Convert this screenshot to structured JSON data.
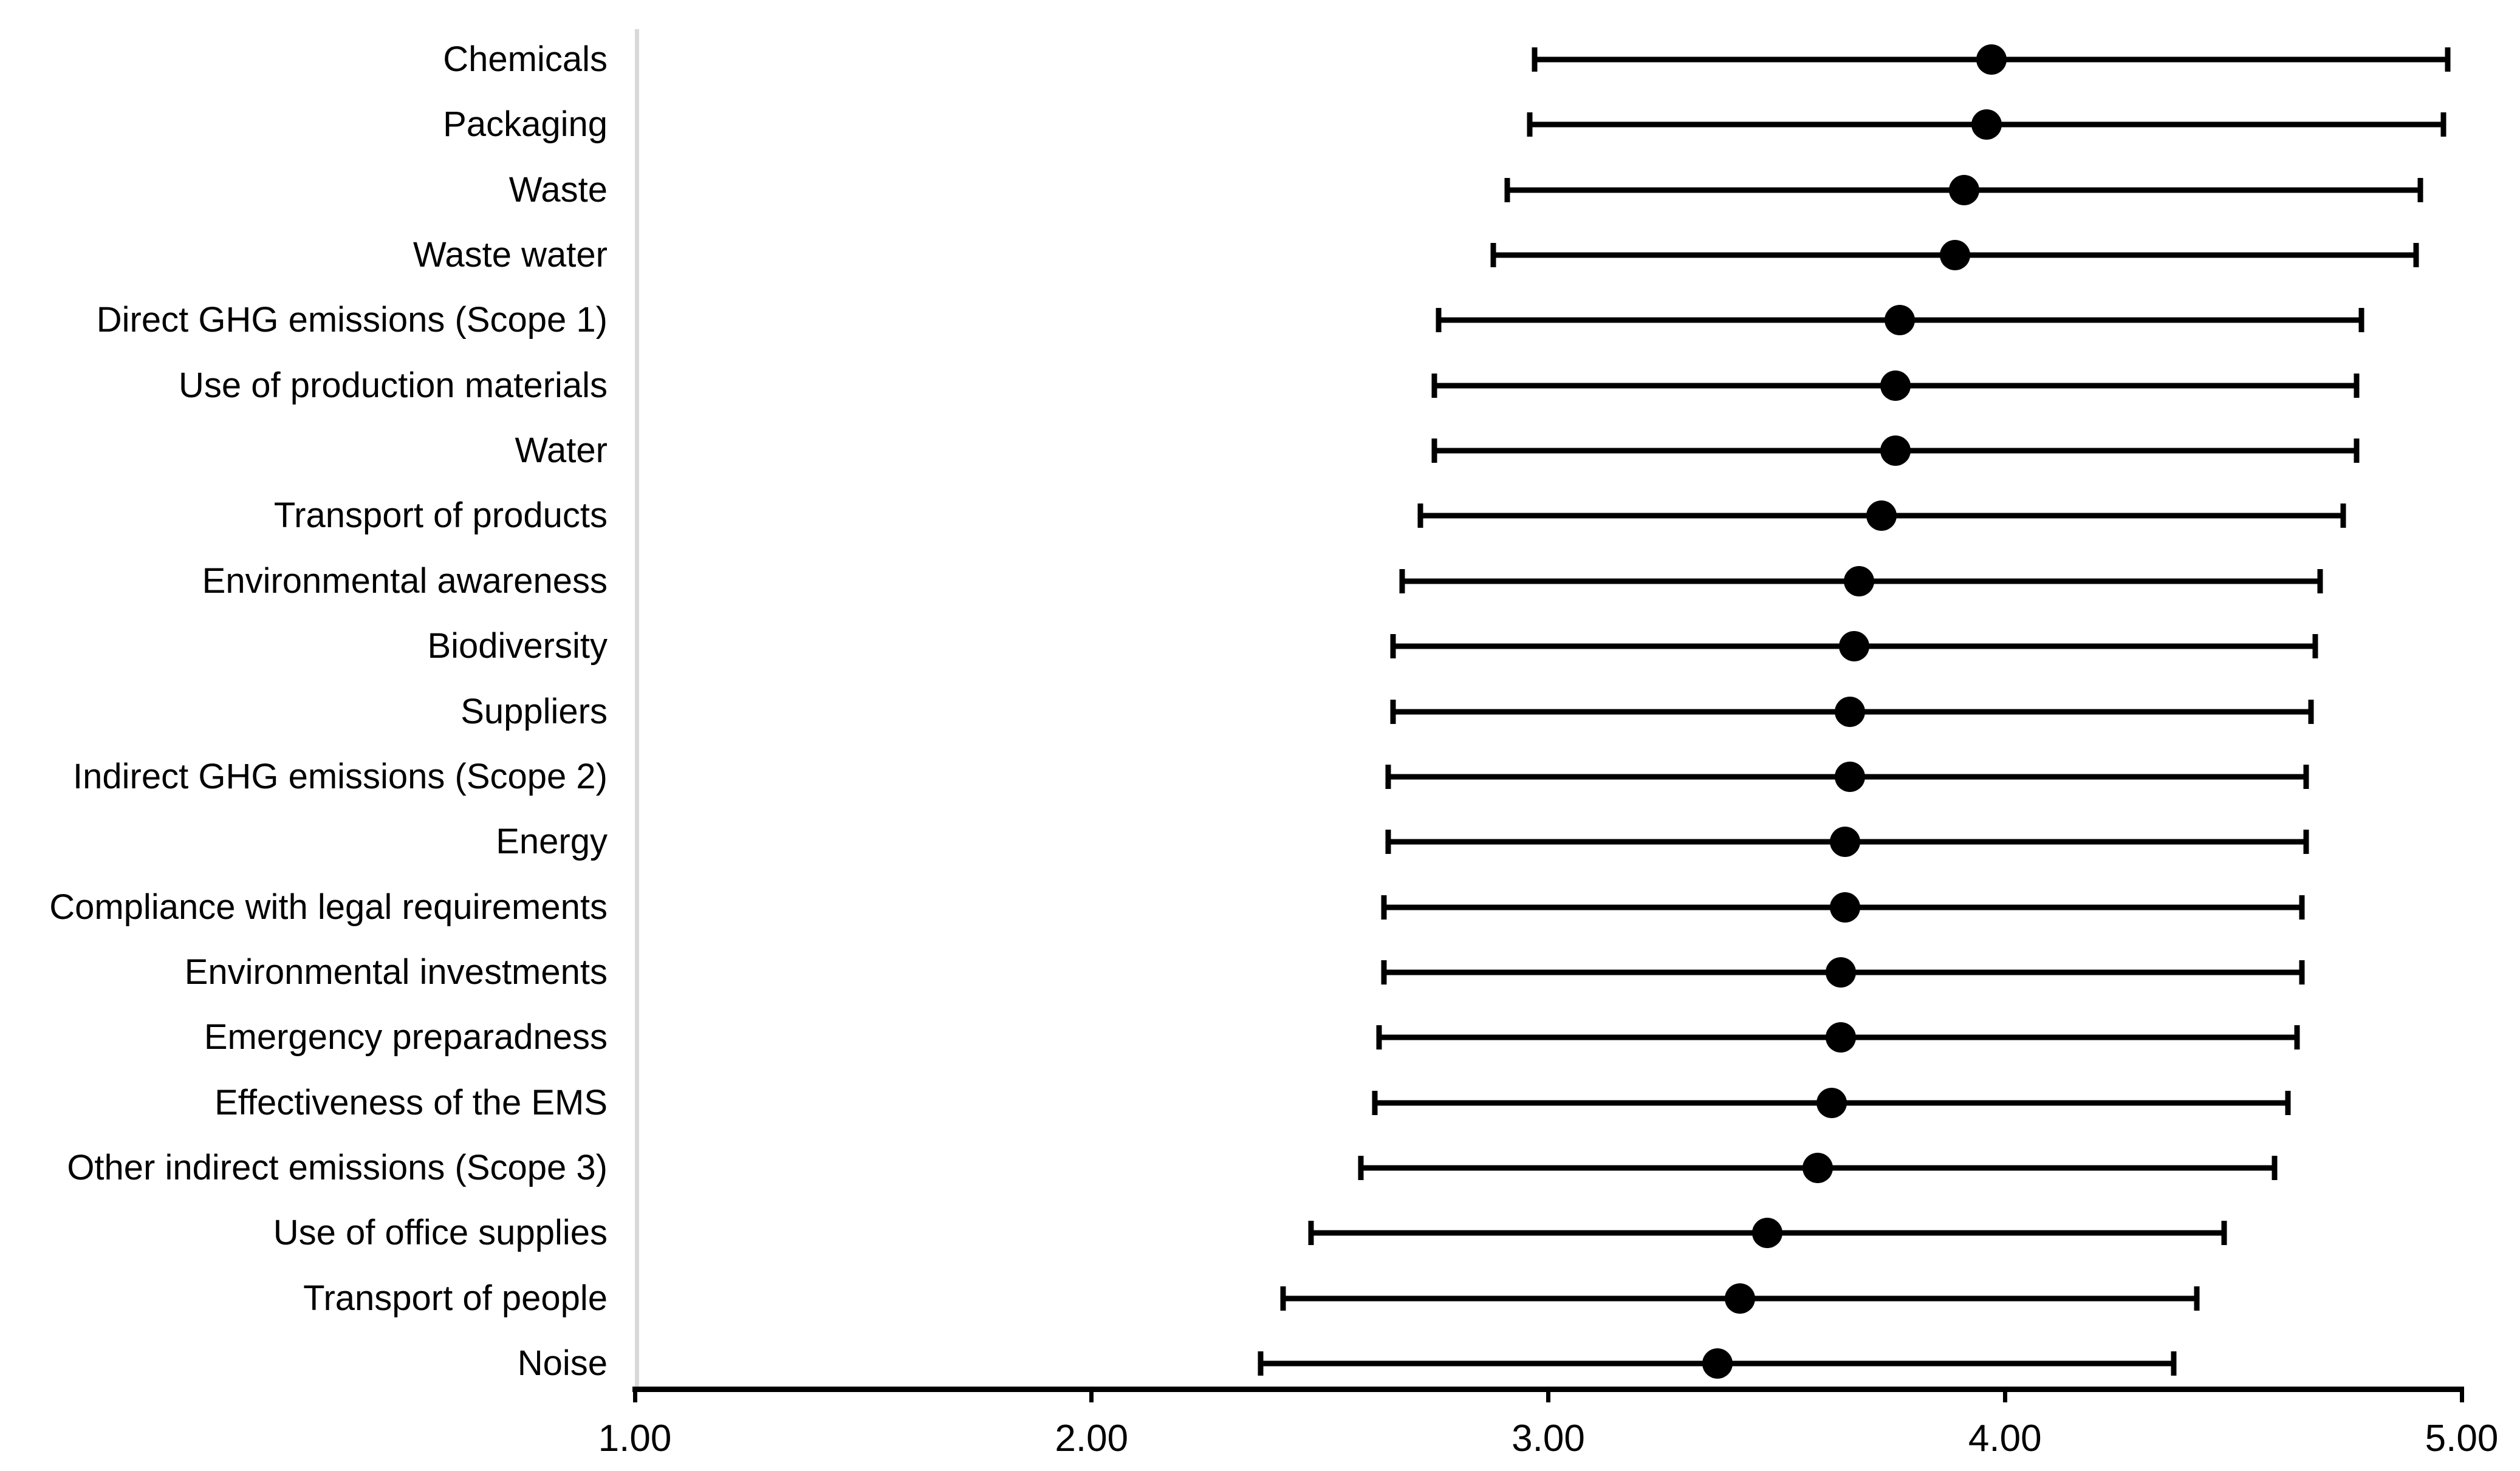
{
  "chart_data": {
    "type": "scatter",
    "subtype": "horizontal-dot-plot-with-error-bars",
    "title": "",
    "xlabel": "",
    "ylabel": "",
    "xlim": [
      1.0,
      5.0
    ],
    "grid": "off",
    "legend": "none",
    "x_ticks": [
      {
        "label": "1.00",
        "value": 1.0
      },
      {
        "label": "2.00",
        "value": 2.0
      },
      {
        "label": "3.00",
        "value": 3.0
      },
      {
        "label": "4.00",
        "value": 4.0
      },
      {
        "label": "5.00",
        "value": 5.0
      }
    ],
    "marker": {
      "shape": "circle",
      "color": "#000000"
    },
    "error_bar_color": "#000000",
    "axis_line_color": "#000000",
    "left_guide_line_color": "#d9d9d9",
    "points": [
      {
        "label": "Chemicals",
        "mean": 3.97,
        "low": 2.97,
        "high": 4.97
      },
      {
        "label": "Packaging",
        "mean": 3.96,
        "low": 2.96,
        "high": 4.96
      },
      {
        "label": "Waste",
        "mean": 3.91,
        "low": 2.91,
        "high": 4.91
      },
      {
        "label": "Waste water",
        "mean": 3.89,
        "low": 2.88,
        "high": 4.9
      },
      {
        "label": "Direct GHG emissions (Scope 1)",
        "mean": 3.77,
        "low": 2.76,
        "high": 4.78
      },
      {
        "label": "Use of production materials",
        "mean": 3.76,
        "low": 2.75,
        "high": 4.77
      },
      {
        "label": "Water",
        "mean": 3.76,
        "low": 2.75,
        "high": 4.77
      },
      {
        "label": "Transport of products",
        "mean": 3.73,
        "low": 2.72,
        "high": 4.74
      },
      {
        "label": "Environmental awareness",
        "mean": 3.68,
        "low": 2.68,
        "high": 4.69
      },
      {
        "label": "Biodiversity",
        "mean": 3.67,
        "low": 2.66,
        "high": 4.68
      },
      {
        "label": "Suppliers",
        "mean": 3.66,
        "low": 2.66,
        "high": 4.67
      },
      {
        "label": "Indirect GHG emissions (Scope 2)",
        "mean": 3.66,
        "low": 2.65,
        "high": 4.66
      },
      {
        "label": "Energy",
        "mean": 3.65,
        "low": 2.65,
        "high": 4.66
      },
      {
        "label": "Compliance with legal requirements",
        "mean": 3.65,
        "low": 2.64,
        "high": 4.65
      },
      {
        "label": "Environmental investments",
        "mean": 3.64,
        "low": 2.64,
        "high": 4.65
      },
      {
        "label": "Emergency preparadness",
        "mean": 3.64,
        "low": 2.63,
        "high": 4.64
      },
      {
        "label": "Effectiveness of the EMS",
        "mean": 3.62,
        "low": 2.62,
        "high": 4.62
      },
      {
        "label": "Other indirect emissions (Scope 3)",
        "mean": 3.59,
        "low": 2.59,
        "high": 4.59
      },
      {
        "label": "Use of office supplies",
        "mean": 3.48,
        "low": 2.48,
        "high": 4.48
      },
      {
        "label": "Transport of people",
        "mean": 3.42,
        "low": 2.42,
        "high": 4.42
      },
      {
        "label": "Noise",
        "mean": 3.37,
        "low": 2.37,
        "high": 4.37
      }
    ]
  }
}
